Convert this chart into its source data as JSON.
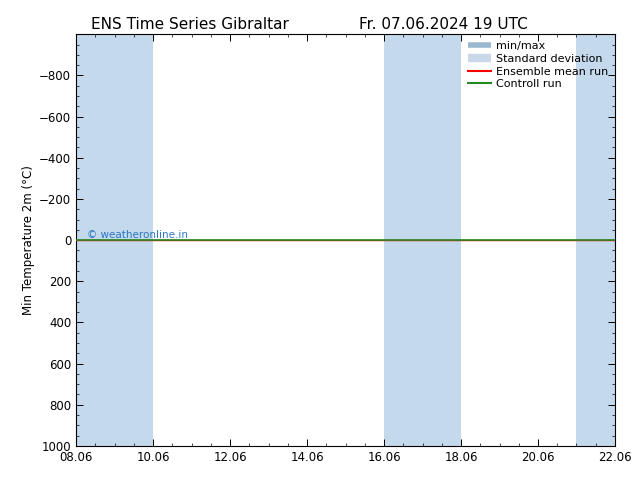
{
  "title_left": "ENS Time Series Gibraltar",
  "title_right": "Fr. 07.06.2024 19 UTC",
  "ylabel": "Min Temperature 2m (°C)",
  "ylim_top": -1000,
  "ylim_bottom": 1000,
  "yticks": [
    -800,
    -600,
    -400,
    -200,
    0,
    200,
    400,
    600,
    800,
    1000
  ],
  "x_start": 0,
  "x_end": 14,
  "xtick_positions": [
    0,
    2,
    4,
    6,
    8,
    10,
    12,
    14
  ],
  "xtick_labels": [
    "08.06",
    "10.06",
    "12.06",
    "14.06",
    "16.06",
    "18.06",
    "20.06",
    "22.06"
  ],
  "shade_bands": [
    [
      0,
      1
    ],
    [
      1,
      2
    ],
    [
      8,
      9
    ],
    [
      9,
      10
    ],
    [
      14,
      15
    ]
  ],
  "shade_color_dark": "#c5d9ec",
  "shade_color_light": "#dce8f5",
  "green_line_y": 0,
  "red_line_y": 0,
  "green_color": "#228B22",
  "red_color": "#ff0000",
  "watermark": "© weatheronline.in",
  "watermark_color": "#1a6bbf",
  "background_color": "#ffffff",
  "legend_labels": [
    "min/max",
    "Standard deviation",
    "Ensemble mean run",
    "Controll run"
  ],
  "legend_colors": [
    "#9ab8d0",
    "#c8d8e8",
    "#ff0000",
    "#228B22"
  ],
  "legend_lw": [
    4,
    6,
    1.5,
    1.5
  ],
  "title_fontsize": 11,
  "tick_fontsize": 8.5,
  "ylabel_fontsize": 8.5,
  "legend_fontsize": 8
}
